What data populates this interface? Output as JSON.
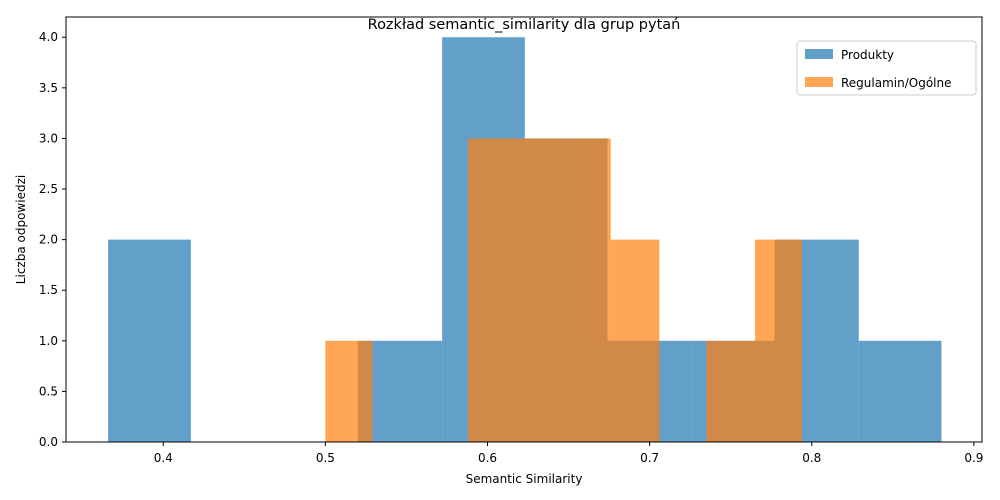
{
  "chart_data": {
    "type": "histogram",
    "title": "Rozkład semantic_similarity dla grup pytań",
    "xlabel": "Semantic Similarity",
    "ylabel": "Liczba odpowiedzi",
    "xlim": [
      0.34,
      0.905
    ],
    "ylim": [
      0,
      4.2
    ],
    "xticks": [
      "0.4",
      "0.5",
      "0.6",
      "0.7",
      "0.8",
      "0.9"
    ],
    "yticks": [
      "0.0",
      "0.5",
      "1.0",
      "1.5",
      "2.0",
      "2.5",
      "3.0",
      "3.5",
      "4.0"
    ],
    "legend_position": "top-right",
    "grid": false,
    "series": [
      {
        "name": "Produkty",
        "color": "#1f77b4",
        "opacity": 0.7,
        "bins": [
          {
            "x0": 0.366,
            "x1": 0.417,
            "count": 2
          },
          {
            "x0": 0.417,
            "x1": 0.469,
            "count": 0
          },
          {
            "x0": 0.469,
            "x1": 0.52,
            "count": 0
          },
          {
            "x0": 0.52,
            "x1": 0.572,
            "count": 1
          },
          {
            "x0": 0.572,
            "x1": 0.623,
            "count": 4
          },
          {
            "x0": 0.623,
            "x1": 0.674,
            "count": 3
          },
          {
            "x0": 0.674,
            "x1": 0.726,
            "count": 1
          },
          {
            "x0": 0.726,
            "x1": 0.777,
            "count": 1
          },
          {
            "x0": 0.777,
            "x1": 0.829,
            "count": 2
          },
          {
            "x0": 0.829,
            "x1": 0.88,
            "count": 1
          }
        ]
      },
      {
        "name": "Regulamin/Ogólne",
        "color": "#ff7f0e",
        "opacity": 0.7,
        "bins": [
          {
            "x0": 0.5,
            "x1": 0.529,
            "count": 1
          },
          {
            "x0": 0.529,
            "x1": 0.559,
            "count": 0
          },
          {
            "x0": 0.559,
            "x1": 0.588,
            "count": 0
          },
          {
            "x0": 0.588,
            "x1": 0.618,
            "count": 3
          },
          {
            "x0": 0.618,
            "x1": 0.647,
            "count": 3
          },
          {
            "x0": 0.647,
            "x1": 0.676,
            "count": 3
          },
          {
            "x0": 0.676,
            "x1": 0.706,
            "count": 2
          },
          {
            "x0": 0.706,
            "x1": 0.735,
            "count": 0
          },
          {
            "x0": 0.735,
            "x1": 0.765,
            "count": 1
          },
          {
            "x0": 0.765,
            "x1": 0.794,
            "count": 2
          }
        ]
      }
    ]
  }
}
